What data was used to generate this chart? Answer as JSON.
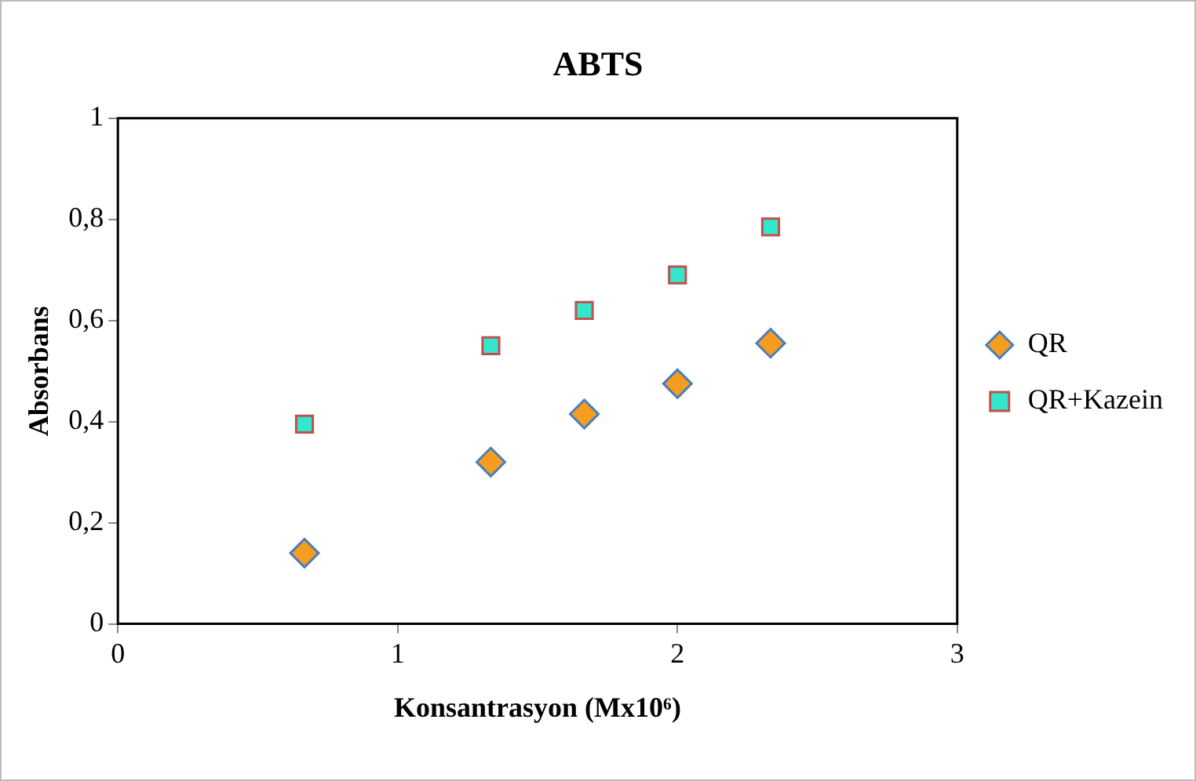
{
  "chart_data": {
    "type": "scatter",
    "title": "ABTS",
    "xlabel": "Konsantrasyon (Mx10⁶)",
    "ylabel": "Absorbans",
    "xlim": [
      0,
      3
    ],
    "xticks": [
      0,
      1,
      2,
      3
    ],
    "ylim": [
      0,
      1
    ],
    "yticks": [
      0,
      {
        "value": 0.2,
        "label": "0,2"
      },
      {
        "value": 0.4,
        "label": "0,4"
      },
      {
        "value": 0.6,
        "label": "0,6"
      },
      {
        "value": 0.8,
        "label": "0,8"
      },
      1
    ],
    "grid": false,
    "legend": "right",
    "series": [
      {
        "name": "QR",
        "color": "#f59d1f",
        "marker": "diamond",
        "x": [
          0.667,
          1.333,
          1.667,
          2,
          2.333
        ],
        "values": [
          0.14,
          0.32,
          0.415,
          0.475,
          0.555
        ]
      },
      {
        "name": "QR+Kazein",
        "color": "#33e6cc",
        "marker": "square",
        "x": [
          0.667,
          1.333,
          1.667,
          2,
          2.333
        ],
        "values": [
          0.395,
          0.55,
          0.62,
          0.69,
          0.785
        ]
      }
    ]
  }
}
